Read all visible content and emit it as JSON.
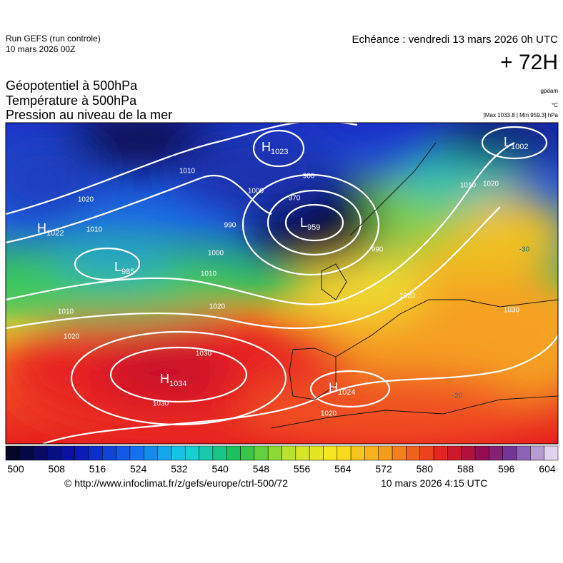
{
  "header": {
    "run": "Run GEFS (run controle)",
    "run_date": "10 mars 2026 00Z",
    "valid": "Echéance : vendredi 13 mars 2026 0h UTC",
    "lead": "+ 72H"
  },
  "legend": {
    "fields": [
      "Géopotentiel à 500hPa",
      "Température à 500hPa",
      "Pression au niveau de la mer"
    ],
    "units": [
      "gpdam",
      "°C",
      "[Max 1033.8 | Min 959.3] hPa"
    ]
  },
  "centers": [
    {
      "letter": "H",
      "value": 1023
    },
    {
      "letter": "L",
      "value": 1002
    },
    {
      "letter": "H",
      "value": 1022
    },
    {
      "letter": "L",
      "value": 959
    },
    {
      "letter": "L",
      "value": 985
    },
    {
      "letter": "H",
      "value": 1034
    },
    {
      "letter": "H",
      "value": 1024
    }
  ],
  "isobar_labels": [
    1010,
    1020,
    1010,
    1000,
    990,
    980,
    970,
    990,
    1000,
    1010,
    1020,
    1010,
    1020,
    1030,
    1030,
    1020,
    1020,
    1030,
    1010,
    1020,
    1010
  ],
  "isotherm_labels": [
    -30,
    -20
  ],
  "colorbar": {
    "labels": [
      500,
      508,
      516,
      524,
      532,
      540,
      548,
      556,
      564,
      572,
      580,
      588,
      596,
      604
    ]
  },
  "footer": {
    "url": "© http://www.infoclimat.fr/z/gefs/europe/ctrl-500/72",
    "issued": "10 mars 2026  4:15 UTC"
  }
}
